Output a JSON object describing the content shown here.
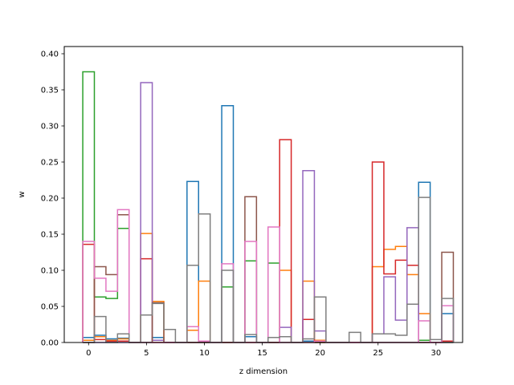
{
  "chart_data": {
    "type": "step",
    "xlabel": "z dimension",
    "ylabel": "w",
    "xlim": [
      -2.1,
      32.3
    ],
    "ylim": [
      0,
      0.41
    ],
    "xticks": [
      0,
      5,
      10,
      15,
      20,
      25,
      30
    ],
    "xtick_labels": [
      "0",
      "5",
      "10",
      "15",
      "20",
      "25",
      "30"
    ],
    "yticks": [
      0.0,
      0.05,
      0.1,
      0.15,
      0.2,
      0.25,
      0.3,
      0.35,
      0.4
    ],
    "ytick_labels": [
      "0.00",
      "0.05",
      "0.10",
      "0.15",
      "0.20",
      "0.25",
      "0.30",
      "0.35",
      "0.40"
    ],
    "grid": false,
    "x": [
      0,
      1,
      2,
      3,
      4,
      5,
      6,
      7,
      8,
      9,
      10,
      11,
      12,
      13,
      14,
      15,
      16,
      17,
      18,
      19,
      20,
      21,
      22,
      23,
      24,
      25,
      26,
      27,
      28,
      29,
      30,
      31
    ],
    "series": [
      {
        "color": "#1f77b4",
        "values": [
          0.007,
          0.01,
          0.005,
          0.006,
          0,
          0,
          0.007,
          0,
          0,
          0.223,
          0,
          0,
          0.328,
          0,
          0.008,
          0,
          0,
          0,
          0,
          0.002,
          0,
          0,
          0,
          0,
          0,
          0,
          0,
          0,
          0,
          0.222,
          0,
          0.04
        ]
      },
      {
        "color": "#ff7f0e",
        "values": [
          0.003,
          0.008,
          0.003,
          0.005,
          0,
          0.151,
          0.057,
          0,
          0,
          0.017,
          0.085,
          0,
          0,
          0,
          0,
          0,
          0,
          0.1,
          0,
          0.085,
          0.003,
          0,
          0,
          0,
          0,
          0.105,
          0.129,
          0.133,
          0.094,
          0.04,
          0,
          0
        ]
      },
      {
        "color": "#2ca02c",
        "values": [
          0.375,
          0.063,
          0.061,
          0.158,
          0,
          0,
          0,
          0,
          0,
          0,
          0,
          0,
          0.077,
          0,
          0.113,
          0,
          0.11,
          0,
          0,
          0,
          0,
          0,
          0,
          0,
          0,
          0,
          0,
          0,
          0,
          0.003,
          0,
          0
        ]
      },
      {
        "color": "#d62728",
        "values": [
          0.136,
          0.004,
          0.002,
          0.002,
          0,
          0.116,
          0,
          0,
          0,
          0,
          0,
          0,
          0,
          0,
          0,
          0,
          0,
          0.281,
          0,
          0.032,
          0,
          0,
          0,
          0,
          0,
          0.25,
          0.095,
          0.114,
          0.107,
          0,
          0,
          0.002
        ]
      },
      {
        "color": "#9467bd",
        "values": [
          0,
          0,
          0,
          0,
          0,
          0.36,
          0.003,
          0,
          0,
          0,
          0,
          0,
          0,
          0,
          0,
          0,
          0,
          0.021,
          0,
          0.238,
          0.016,
          0,
          0,
          0,
          0,
          0.012,
          0.091,
          0.031,
          0.159,
          0,
          0,
          0
        ]
      },
      {
        "color": "#8c564b",
        "values": [
          0,
          0.105,
          0.094,
          0.177,
          0,
          0,
          0.055,
          0,
          0,
          0,
          0,
          0,
          0,
          0,
          0.202,
          0,
          0,
          0,
          0,
          0,
          0,
          0,
          0,
          0,
          0,
          0,
          0,
          0,
          0,
          0,
          0,
          0.125
        ]
      },
      {
        "color": "#e377c2",
        "values": [
          0.14,
          0.089,
          0.071,
          0.184,
          0,
          0,
          0,
          0,
          0,
          0.022,
          0.002,
          0,
          0.109,
          0,
          0.14,
          0,
          0.16,
          0,
          0,
          0,
          0.002,
          0,
          0,
          0,
          0,
          0,
          0,
          0,
          0,
          0.03,
          0,
          0.051
        ]
      },
      {
        "color": "#7f7f7f",
        "values": [
          0,
          0.036,
          0,
          0.012,
          0,
          0.038,
          0.054,
          0.018,
          0,
          0.107,
          0.178,
          0,
          0.1,
          0,
          0.011,
          0,
          0.007,
          0.008,
          0,
          0.005,
          0.063,
          0,
          0,
          0.014,
          0,
          0.012,
          0.012,
          0.01,
          0.053,
          0.201,
          0.004,
          0.061
        ]
      }
    ]
  }
}
